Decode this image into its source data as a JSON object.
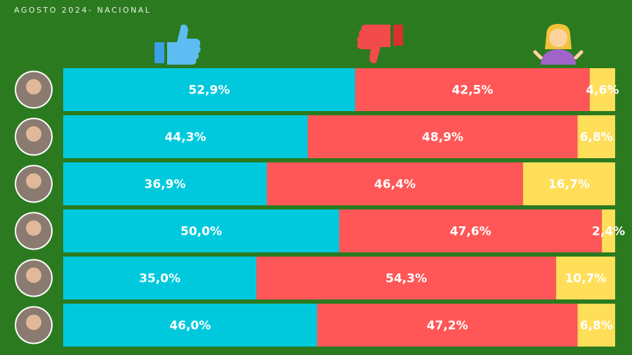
{
  "chart_data": {
    "type": "stacked-barh",
    "title": "AGOSTO 2024- NACIONAL",
    "categories": [
      null,
      null,
      null,
      null,
      null,
      null
    ],
    "xlim": [
      0,
      100
    ],
    "series": [
      {
        "color": "#00c9dd",
        "values": [
          52.9,
          44.3,
          36.9,
          50.0,
          35.0,
          46.0
        ],
        "value_labels": [
          "52,9%",
          "44,3%",
          "36,9%",
          "50,0%",
          "35,0%",
          "46,0%"
        ]
      },
      {
        "color": "#ff5757",
        "values": [
          42.5,
          48.9,
          46.4,
          47.6,
          54.3,
          47.2
        ],
        "value_labels": [
          "42,5%",
          "48,9%",
          "46,4%",
          "47,6%",
          "54,3%",
          "47,2%"
        ]
      },
      {
        "color": "#ffde59",
        "values": [
          4.6,
          6.8,
          16.7,
          2.4,
          10.7,
          6.8
        ],
        "value_labels": [
          "4,6%",
          "6,8%",
          "16,7%",
          "2,4%",
          "10,7%",
          "6,8%"
        ]
      }
    ]
  }
}
